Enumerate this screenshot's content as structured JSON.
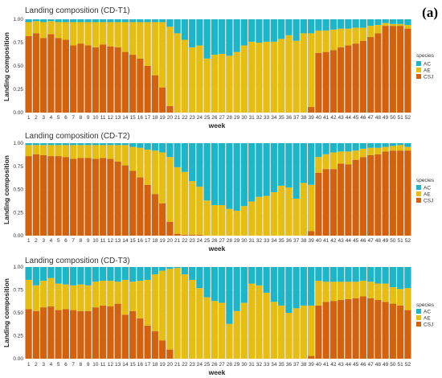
{
  "figure": {
    "panel_letter": "(a)",
    "colors": {
      "AC": "#1fb5c9",
      "AE": "#e6bd12",
      "CSJ": "#d3620e",
      "background": "#ebebeb",
      "gridline": "#ffffff"
    }
  },
  "chart_data": [
    {
      "type": "bar",
      "stacked": true,
      "title": "Landing composition (CD-T1)",
      "xlabel": "week",
      "ylabel": "Landing composition",
      "ylim": [
        0,
        1
      ],
      "yticks": [
        "0.00",
        "0.25",
        "0.50",
        "0.75",
        "1.00"
      ],
      "categories": [
        "1",
        "2",
        "3",
        "4",
        "5",
        "6",
        "7",
        "8",
        "9",
        "10",
        "11",
        "12",
        "13",
        "14",
        "15",
        "16",
        "17",
        "18",
        "19",
        "20",
        "21",
        "22",
        "23",
        "24",
        "25",
        "26",
        "27",
        "28",
        "29",
        "30",
        "31",
        "32",
        "33",
        "34",
        "35",
        "36",
        "37",
        "38",
        "39",
        "40",
        "41",
        "42",
        "43",
        "44",
        "45",
        "46",
        "47",
        "48",
        "49",
        "50",
        "51",
        "52"
      ],
      "legend": {
        "title": "species",
        "position": "right",
        "entries": [
          "AC",
          "AE",
          "CSJ"
        ]
      },
      "series": [
        {
          "name": "CSJ",
          "values": [
            0.82,
            0.85,
            0.8,
            0.84,
            0.8,
            0.78,
            0.72,
            0.74,
            0.72,
            0.7,
            0.73,
            0.71,
            0.7,
            0.65,
            0.62,
            0.58,
            0.5,
            0.4,
            0.27,
            0.07,
            0.0,
            0.0,
            0.0,
            0.0,
            0.0,
            0.0,
            0.0,
            0.0,
            0.0,
            0.0,
            0.0,
            0.0,
            0.0,
            0.0,
            0.0,
            0.0,
            0.0,
            0.0,
            0.06,
            0.64,
            0.65,
            0.67,
            0.7,
            0.72,
            0.74,
            0.77,
            0.81,
            0.85,
            0.93,
            0.93,
            0.93,
            0.9
          ]
        },
        {
          "name": "AE",
          "values": [
            0.15,
            0.13,
            0.17,
            0.14,
            0.17,
            0.19,
            0.25,
            0.23,
            0.25,
            0.27,
            0.24,
            0.26,
            0.27,
            0.32,
            0.35,
            0.39,
            0.47,
            0.57,
            0.7,
            0.85,
            0.85,
            0.78,
            0.7,
            0.72,
            0.58,
            0.62,
            0.63,
            0.61,
            0.65,
            0.72,
            0.76,
            0.75,
            0.76,
            0.76,
            0.79,
            0.83,
            0.77,
            0.85,
            0.79,
            0.24,
            0.23,
            0.22,
            0.2,
            0.18,
            0.17,
            0.14,
            0.12,
            0.09,
            0.03,
            0.02,
            0.02,
            0.04
          ]
        },
        {
          "name": "AC",
          "values": [
            0.03,
            0.02,
            0.03,
            0.02,
            0.03,
            0.03,
            0.03,
            0.03,
            0.03,
            0.03,
            0.03,
            0.03,
            0.03,
            0.03,
            0.03,
            0.03,
            0.03,
            0.03,
            0.03,
            0.08,
            0.15,
            0.22,
            0.3,
            0.28,
            0.42,
            0.38,
            0.37,
            0.39,
            0.35,
            0.28,
            0.24,
            0.25,
            0.24,
            0.24,
            0.21,
            0.17,
            0.23,
            0.15,
            0.15,
            0.12,
            0.12,
            0.11,
            0.1,
            0.1,
            0.09,
            0.09,
            0.07,
            0.06,
            0.04,
            0.05,
            0.05,
            0.06
          ]
        }
      ]
    },
    {
      "type": "bar",
      "stacked": true,
      "title": "Landing composition (CD-T2)",
      "xlabel": "week",
      "ylabel": "Landing composition",
      "ylim": [
        0,
        1
      ],
      "yticks": [
        "0.00",
        "0.25",
        "0.50",
        "0.75",
        "1.00"
      ],
      "categories": [
        "1",
        "2",
        "3",
        "4",
        "5",
        "6",
        "7",
        "8",
        "9",
        "10",
        "11",
        "12",
        "13",
        "14",
        "15",
        "16",
        "17",
        "18",
        "19",
        "20",
        "21",
        "22",
        "23",
        "24",
        "25",
        "26",
        "27",
        "28",
        "29",
        "30",
        "31",
        "32",
        "33",
        "34",
        "35",
        "36",
        "37",
        "38",
        "39",
        "40",
        "41",
        "42",
        "43",
        "44",
        "45",
        "46",
        "47",
        "48",
        "49",
        "50",
        "51",
        "52"
      ],
      "legend": {
        "title": "species",
        "position": "right",
        "entries": [
          "AC",
          "AE",
          "CSJ"
        ]
      },
      "series": [
        {
          "name": "CSJ",
          "values": [
            0.86,
            0.88,
            0.87,
            0.86,
            0.86,
            0.85,
            0.83,
            0.84,
            0.84,
            0.83,
            0.84,
            0.83,
            0.8,
            0.76,
            0.7,
            0.63,
            0.55,
            0.45,
            0.35,
            0.15,
            0.02,
            0.01,
            0.01,
            0.01,
            0.0,
            0.0,
            0.0,
            0.0,
            0.0,
            0.0,
            0.0,
            0.0,
            0.0,
            0.0,
            0.0,
            0.0,
            0.0,
            0.0,
            0.05,
            0.68,
            0.72,
            0.72,
            0.78,
            0.77,
            0.82,
            0.85,
            0.87,
            0.88,
            0.91,
            0.92,
            0.92,
            0.92
          ]
        },
        {
          "name": "AE",
          "values": [
            0.12,
            0.1,
            0.11,
            0.12,
            0.12,
            0.13,
            0.15,
            0.14,
            0.14,
            0.15,
            0.14,
            0.15,
            0.18,
            0.22,
            0.26,
            0.32,
            0.38,
            0.47,
            0.55,
            0.7,
            0.72,
            0.68,
            0.58,
            0.52,
            0.38,
            0.33,
            0.33,
            0.29,
            0.27,
            0.32,
            0.37,
            0.42,
            0.43,
            0.47,
            0.54,
            0.52,
            0.4,
            0.57,
            0.5,
            0.17,
            0.16,
            0.18,
            0.13,
            0.14,
            0.1,
            0.09,
            0.08,
            0.07,
            0.05,
            0.05,
            0.06,
            0.04
          ]
        },
        {
          "name": "AC",
          "values": [
            0.02,
            0.02,
            0.02,
            0.02,
            0.02,
            0.02,
            0.02,
            0.02,
            0.02,
            0.02,
            0.02,
            0.02,
            0.02,
            0.02,
            0.04,
            0.05,
            0.07,
            0.08,
            0.1,
            0.15,
            0.26,
            0.31,
            0.41,
            0.47,
            0.62,
            0.67,
            0.67,
            0.71,
            0.73,
            0.68,
            0.63,
            0.58,
            0.57,
            0.53,
            0.46,
            0.48,
            0.6,
            0.43,
            0.45,
            0.15,
            0.12,
            0.1,
            0.09,
            0.09,
            0.08,
            0.06,
            0.05,
            0.05,
            0.04,
            0.03,
            0.02,
            0.04
          ]
        }
      ]
    },
    {
      "type": "bar",
      "stacked": true,
      "title": "Landing composition (CD-T3)",
      "xlabel": "week",
      "ylabel": "Landing composition",
      "ylim": [
        0,
        1
      ],
      "yticks": [
        "0.00",
        "0.25",
        "0.50",
        "0.75",
        "1.00"
      ],
      "categories": [
        "1",
        "2",
        "3",
        "4",
        "5",
        "6",
        "7",
        "8",
        "9",
        "10",
        "11",
        "12",
        "13",
        "14",
        "15",
        "16",
        "17",
        "18",
        "19",
        "20",
        "21",
        "22",
        "23",
        "24",
        "25",
        "26",
        "27",
        "28",
        "29",
        "30",
        "31",
        "32",
        "33",
        "34",
        "35",
        "36",
        "37",
        "38",
        "39",
        "40",
        "41",
        "42",
        "43",
        "44",
        "45",
        "46",
        "47",
        "48",
        "49",
        "50",
        "51",
        "52"
      ],
      "legend": {
        "title": "species",
        "position": "right",
        "entries": [
          "AC",
          "AE",
          "CSJ"
        ]
      },
      "series": [
        {
          "name": "CSJ",
          "values": [
            0.54,
            0.52,
            0.56,
            0.57,
            0.53,
            0.54,
            0.53,
            0.52,
            0.52,
            0.56,
            0.58,
            0.57,
            0.6,
            0.48,
            0.52,
            0.44,
            0.36,
            0.3,
            0.2,
            0.1,
            0.0,
            0.0,
            0.0,
            0.0,
            0.0,
            0.0,
            0.0,
            0.0,
            0.0,
            0.0,
            0.0,
            0.0,
            0.0,
            0.0,
            0.0,
            0.0,
            0.0,
            0.0,
            0.03,
            0.58,
            0.62,
            0.63,
            0.64,
            0.65,
            0.66,
            0.68,
            0.66,
            0.64,
            0.62,
            0.6,
            0.58,
            0.53
          ]
        },
        {
          "name": "AE",
          "values": [
            0.32,
            0.28,
            0.29,
            0.31,
            0.29,
            0.27,
            0.27,
            0.29,
            0.28,
            0.28,
            0.27,
            0.28,
            0.24,
            0.38,
            0.32,
            0.41,
            0.5,
            0.62,
            0.76,
            0.88,
            0.99,
            0.92,
            0.86,
            0.77,
            0.67,
            0.63,
            0.61,
            0.38,
            0.52,
            0.61,
            0.82,
            0.8,
            0.72,
            0.62,
            0.58,
            0.5,
            0.55,
            0.58,
            0.55,
            0.27,
            0.22,
            0.21,
            0.2,
            0.19,
            0.18,
            0.17,
            0.18,
            0.18,
            0.2,
            0.18,
            0.18,
            0.24
          ]
        },
        {
          "name": "AC",
          "values": [
            0.14,
            0.2,
            0.15,
            0.12,
            0.18,
            0.19,
            0.2,
            0.19,
            0.2,
            0.16,
            0.15,
            0.15,
            0.16,
            0.14,
            0.16,
            0.15,
            0.14,
            0.08,
            0.04,
            0.02,
            0.01,
            0.08,
            0.14,
            0.23,
            0.33,
            0.37,
            0.39,
            0.62,
            0.48,
            0.39,
            0.18,
            0.2,
            0.28,
            0.38,
            0.42,
            0.5,
            0.45,
            0.42,
            0.42,
            0.15,
            0.16,
            0.16,
            0.16,
            0.16,
            0.16,
            0.15,
            0.16,
            0.18,
            0.18,
            0.22,
            0.24,
            0.23
          ]
        }
      ]
    }
  ]
}
